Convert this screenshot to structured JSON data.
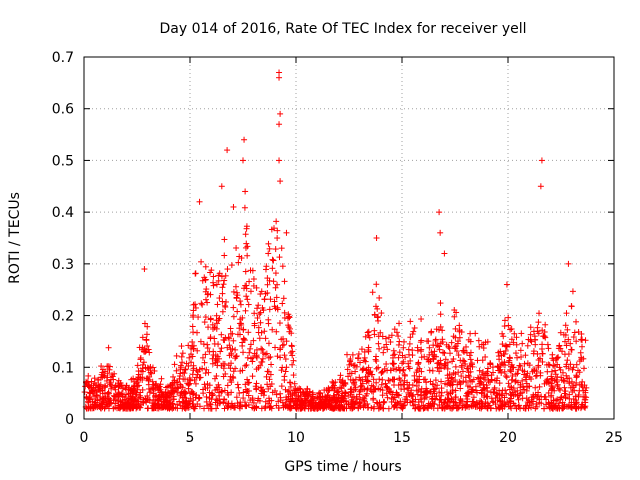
{
  "chart_data": {
    "type": "scatter",
    "title": "Day 014 of 2016, Rate Of TEC Index for receiver yell",
    "xlabel": "GPS time / hours",
    "ylabel": "ROTI / TECUs",
    "xlim": [
      0,
      25
    ],
    "ylim": [
      0,
      0.7
    ],
    "xticks": [
      0,
      5,
      10,
      15,
      20,
      25
    ],
    "yticks": [
      0,
      0.1,
      0.2,
      0.3,
      0.4,
      0.5,
      0.6,
      0.7
    ],
    "grid": true,
    "marker": "+",
    "color": "#ff0000",
    "series": [
      {
        "name": "ROTI",
        "envelope_hours": [
          0,
          0.5,
          1.0,
          1.2,
          1.5,
          2.0,
          2.5,
          2.8,
          3.0,
          3.3,
          3.8,
          4.2,
          4.5,
          4.8,
          5.0,
          5.3,
          5.5,
          6.0,
          6.3,
          6.6,
          7.0,
          7.4,
          7.7,
          8.0,
          8.5,
          9.0,
          9.2,
          9.5,
          9.8,
          10.0,
          10.5,
          11.0,
          11.5,
          12.0,
          12.5,
          13.0,
          13.5,
          13.8,
          14.2,
          14.5,
          15.0,
          15.5,
          16.0,
          16.5,
          16.8,
          17.0,
          17.5,
          18.0,
          18.5,
          19.0,
          19.5,
          19.8,
          20.0,
          20.3,
          20.6,
          21.0,
          21.5,
          21.7,
          22.0,
          22.5,
          22.8,
          23.0,
          23.3,
          23.7
        ],
        "envelope_roti": [
          0.1,
          0.08,
          0.11,
          0.14,
          0.09,
          0.07,
          0.08,
          0.25,
          0.2,
          0.1,
          0.06,
          0.09,
          0.16,
          0.12,
          0.15,
          0.3,
          0.4,
          0.32,
          0.3,
          0.35,
          0.28,
          0.38,
          0.45,
          0.3,
          0.28,
          0.42,
          0.38,
          0.3,
          0.2,
          0.07,
          0.06,
          0.05,
          0.06,
          0.08,
          0.13,
          0.14,
          0.2,
          0.28,
          0.2,
          0.16,
          0.18,
          0.2,
          0.19,
          0.17,
          0.25,
          0.15,
          0.2,
          0.17,
          0.16,
          0.15,
          0.12,
          0.18,
          0.2,
          0.16,
          0.2,
          0.18,
          0.2,
          0.24,
          0.12,
          0.16,
          0.22,
          0.28,
          0.2,
          0.15
        ],
        "floor_roti": 0.02,
        "outliers": [
          {
            "x": 2.85,
            "y": 0.29
          },
          {
            "x": 5.45,
            "y": 0.42
          },
          {
            "x": 6.5,
            "y": 0.45
          },
          {
            "x": 6.75,
            "y": 0.52
          },
          {
            "x": 7.05,
            "y": 0.41
          },
          {
            "x": 7.55,
            "y": 0.54
          },
          {
            "x": 7.5,
            "y": 0.5
          },
          {
            "x": 7.6,
            "y": 0.44
          },
          {
            "x": 9.2,
            "y": 0.67
          },
          {
            "x": 9.2,
            "y": 0.66
          },
          {
            "x": 9.25,
            "y": 0.59
          },
          {
            "x": 9.2,
            "y": 0.57
          },
          {
            "x": 9.2,
            "y": 0.5
          },
          {
            "x": 9.25,
            "y": 0.46
          },
          {
            "x": 9.55,
            "y": 0.36
          },
          {
            "x": 13.8,
            "y": 0.35
          },
          {
            "x": 16.75,
            "y": 0.4
          },
          {
            "x": 16.8,
            "y": 0.36
          },
          {
            "x": 17.0,
            "y": 0.32
          },
          {
            "x": 19.95,
            "y": 0.26
          },
          {
            "x": 21.6,
            "y": 0.5
          },
          {
            "x": 21.55,
            "y": 0.45
          },
          {
            "x": 22.85,
            "y": 0.3
          }
        ]
      }
    ]
  }
}
